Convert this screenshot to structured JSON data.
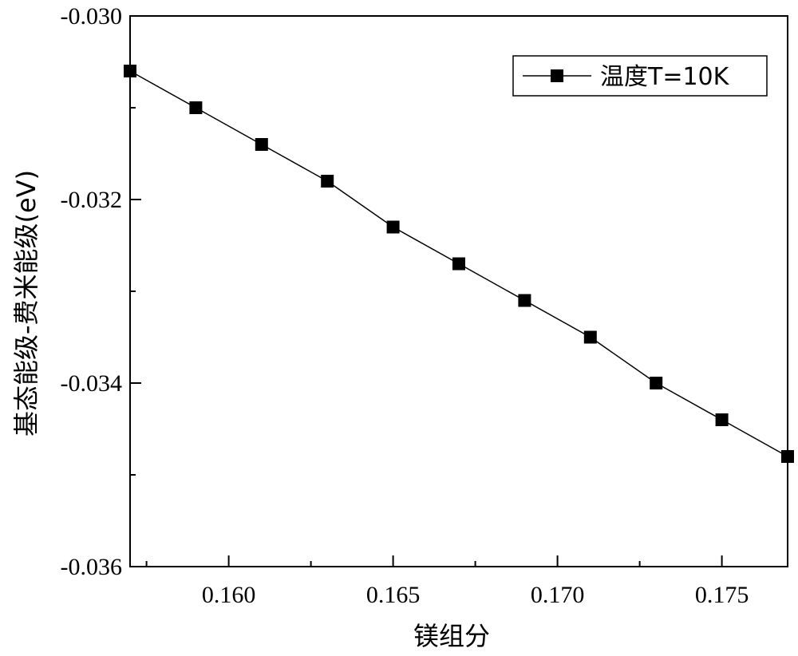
{
  "chart_data": {
    "type": "line",
    "title": "",
    "xlabel": "镁组分",
    "ylabel": "基态能级-费米能级(eV)",
    "xlim": [
      0.157,
      0.177
    ],
    "ylim": [
      -0.036,
      -0.03
    ],
    "x_ticks": [
      0.16,
      0.165,
      0.17,
      0.175
    ],
    "x_tick_labels": [
      "0.160",
      "0.165",
      "0.170",
      "0.175"
    ],
    "y_ticks": [
      -0.03,
      -0.032,
      -0.034,
      -0.036
    ],
    "y_tick_labels": [
      "-0.030",
      "-0.032",
      "-0.034",
      "-0.036"
    ],
    "grid": false,
    "legend_position": "top-right",
    "series": [
      {
        "name": "温度T=10K",
        "marker": "square",
        "color": "#000000",
        "x": [
          0.157,
          0.159,
          0.161,
          0.163,
          0.165,
          0.167,
          0.169,
          0.171,
          0.173,
          0.175,
          0.177
        ],
        "y": [
          -0.0306,
          -0.031,
          -0.0314,
          -0.0318,
          -0.0323,
          -0.0327,
          -0.0331,
          -0.0335,
          -0.034,
          -0.0344,
          -0.0348
        ]
      }
    ]
  }
}
